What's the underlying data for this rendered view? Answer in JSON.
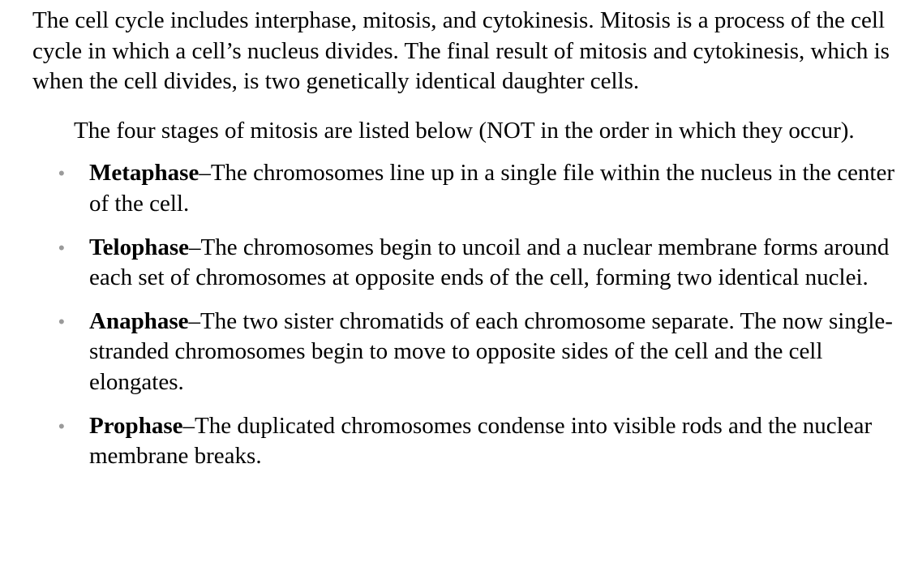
{
  "intro": "The cell cycle includes interphase, mitosis, and cytokinesis. Mitosis is a process of the cell cycle in which a cell’s nucleus divides. The final result of mitosis and cytokinesis, which is when the cell divides, is two genetically identical daughter cells.",
  "lead": "The four stages of mitosis are listed below (NOT in the order in which they occur).",
  "bullet_glyph": "•",
  "stages": [
    {
      "term": "Metaphase",
      "description": "–The chromosomes line up in a single file within the nucleus in the center of the cell."
    },
    {
      "term": "Telophase",
      "description": "–The chromosomes begin to uncoil and a nuclear membrane forms around each set of chromosomes at opposite ends of the cell, forming two identical nuclei."
    },
    {
      "term": "Anaphase",
      "description": "–The two sister chromatids of each chromosome separate. The now single-stranded chromosomes begin to move to opposite sides of the cell and the cell elongates."
    },
    {
      "term": "Prophase",
      "description": "–The duplicated chromosomes condense into visible rods and the nuclear membrane breaks."
    }
  ]
}
